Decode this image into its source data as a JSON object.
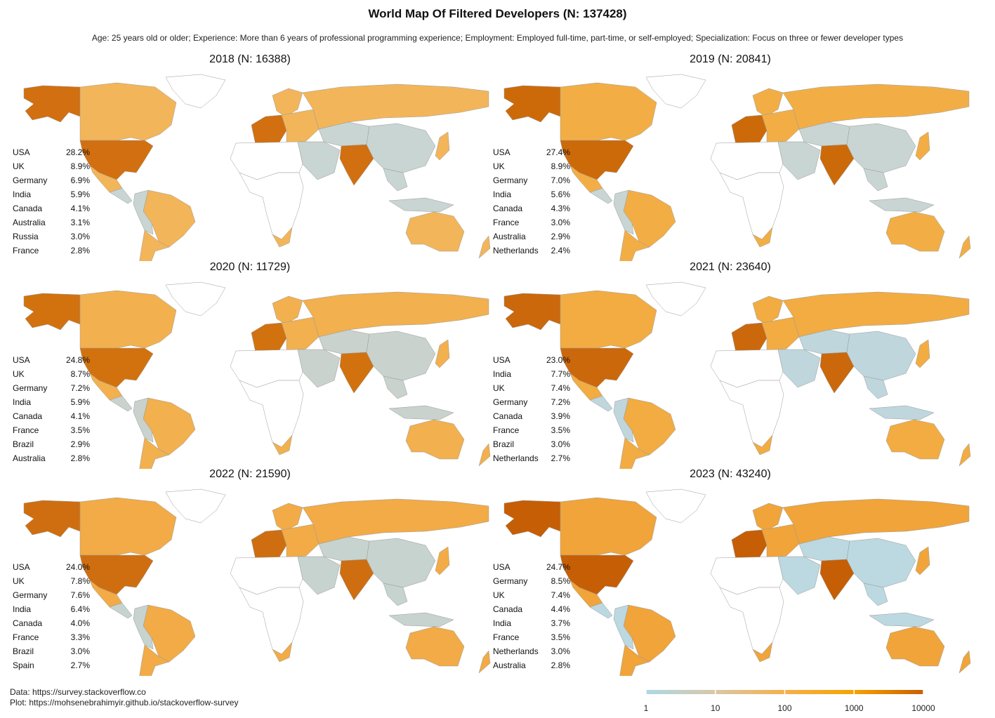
{
  "title": "World Map Of Filtered Developers (N: 137428)",
  "subtitle": "Age: 25 years old or older; Experience: More than 6 years of professional programming experience; Employment: Employed full-time, part-time, or self-employed; Specialization: Focus on three or fewer developer types",
  "panels": [
    {
      "title": "2018 (N: 16388)",
      "stats": [
        {
          "country": "USA",
          "pct": "28.2%"
        },
        {
          "country": "UK",
          "pct": "8.9%"
        },
        {
          "country": "Germany",
          "pct": "6.9%"
        },
        {
          "country": "India",
          "pct": "5.9%"
        },
        {
          "country": "Canada",
          "pct": "4.1%"
        },
        {
          "country": "Australia",
          "pct": "3.1%"
        },
        {
          "country": "Russia",
          "pct": "3.0%"
        },
        {
          "country": "France",
          "pct": "2.8%"
        }
      ]
    },
    {
      "title": "2019 (N: 20841)",
      "stats": [
        {
          "country": "USA",
          "pct": "27.4%"
        },
        {
          "country": "UK",
          "pct": "8.9%"
        },
        {
          "country": "Germany",
          "pct": "7.0%"
        },
        {
          "country": "India",
          "pct": "5.6%"
        },
        {
          "country": "Canada",
          "pct": "4.3%"
        },
        {
          "country": "France",
          "pct": "3.0%"
        },
        {
          "country": "Australia",
          "pct": "2.9%"
        },
        {
          "country": "Netherlands",
          "pct": "2.4%"
        }
      ]
    },
    {
      "title": "2020 (N: 11729)",
      "stats": [
        {
          "country": "USA",
          "pct": "24.8%"
        },
        {
          "country": "UK",
          "pct": "8.7%"
        },
        {
          "country": "Germany",
          "pct": "7.2%"
        },
        {
          "country": "India",
          "pct": "5.9%"
        },
        {
          "country": "Canada",
          "pct": "4.1%"
        },
        {
          "country": "France",
          "pct": "3.5%"
        },
        {
          "country": "Brazil",
          "pct": "2.9%"
        },
        {
          "country": "Australia",
          "pct": "2.8%"
        }
      ]
    },
    {
      "title": "2021 (N: 23640)",
      "stats": [
        {
          "country": "USA",
          "pct": "23.0%"
        },
        {
          "country": "India",
          "pct": "7.7%"
        },
        {
          "country": "UK",
          "pct": "7.4%"
        },
        {
          "country": "Germany",
          "pct": "7.2%"
        },
        {
          "country": "Canada",
          "pct": "3.9%"
        },
        {
          "country": "France",
          "pct": "3.5%"
        },
        {
          "country": "Brazil",
          "pct": "3.0%"
        },
        {
          "country": "Netherlands",
          "pct": "2.7%"
        }
      ]
    },
    {
      "title": "2022 (N: 21590)",
      "stats": [
        {
          "country": "USA",
          "pct": "24.0%"
        },
        {
          "country": "UK",
          "pct": "7.8%"
        },
        {
          "country": "Germany",
          "pct": "7.6%"
        },
        {
          "country": "India",
          "pct": "6.4%"
        },
        {
          "country": "Canada",
          "pct": "4.0%"
        },
        {
          "country": "France",
          "pct": "3.3%"
        },
        {
          "country": "Brazil",
          "pct": "3.0%"
        },
        {
          "country": "Spain",
          "pct": "2.7%"
        }
      ]
    },
    {
      "title": "2023 (N: 43240)",
      "stats": [
        {
          "country": "USA",
          "pct": "24.7%"
        },
        {
          "country": "Germany",
          "pct": "8.5%"
        },
        {
          "country": "UK",
          "pct": "7.4%"
        },
        {
          "country": "Canada",
          "pct": "4.4%"
        },
        {
          "country": "India",
          "pct": "3.7%"
        },
        {
          "country": "France",
          "pct": "3.5%"
        },
        {
          "country": "Netherlands",
          "pct": "3.0%"
        },
        {
          "country": "Australia",
          "pct": "2.8%"
        }
      ]
    }
  ],
  "footer": {
    "data_line": "Data: https://survey.stackoverflow.co",
    "plot_line": "Plot: https://mohsenebrahimyir.github.io/stackoverflow-survey"
  },
  "legend": {
    "ticks": [
      "1",
      "10",
      "100",
      "1000",
      "10000"
    ],
    "colors": [
      "#add8e6",
      "#d8c8a6",
      "#f5b04a",
      "#f5a300",
      "#c86000"
    ]
  }
}
